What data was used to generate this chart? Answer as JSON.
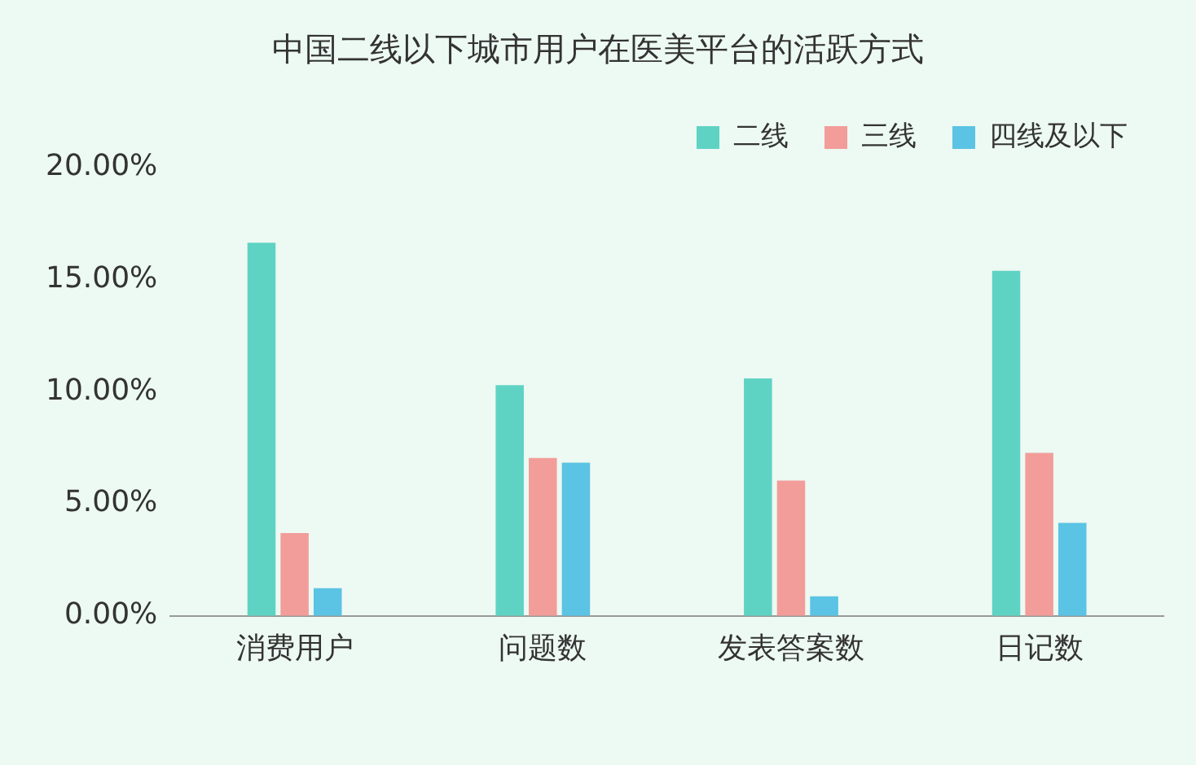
{
  "chart_data": {
    "type": "bar",
    "title": "中国二线以下城市用户在医美平台的活跃方式",
    "categories": [
      "消费用户",
      "问题数",
      "发表答案数",
      "日记数"
    ],
    "series": [
      {
        "name": "二线",
        "color": "#5fd3c3",
        "values": [
          16.65,
          10.3,
          10.6,
          15.4
        ]
      },
      {
        "name": "三线",
        "color": "#f29d99",
        "values": [
          3.7,
          7.05,
          6.04,
          7.27
        ]
      },
      {
        "name": "四线及以下",
        "color": "#5bc3e3",
        "values": [
          1.24,
          6.84,
          0.87,
          4.15
        ]
      }
    ],
    "ylim": [
      0,
      20
    ],
    "yticks": [
      {
        "value": 0,
        "label": "0.00%"
      },
      {
        "value": 5,
        "label": "5.00%"
      },
      {
        "value": 10,
        "label": "10.00%"
      },
      {
        "value": 15,
        "label": "15.00%"
      },
      {
        "value": 20,
        "label": "20.00%"
      }
    ],
    "grid": false,
    "legend": "top right"
  }
}
